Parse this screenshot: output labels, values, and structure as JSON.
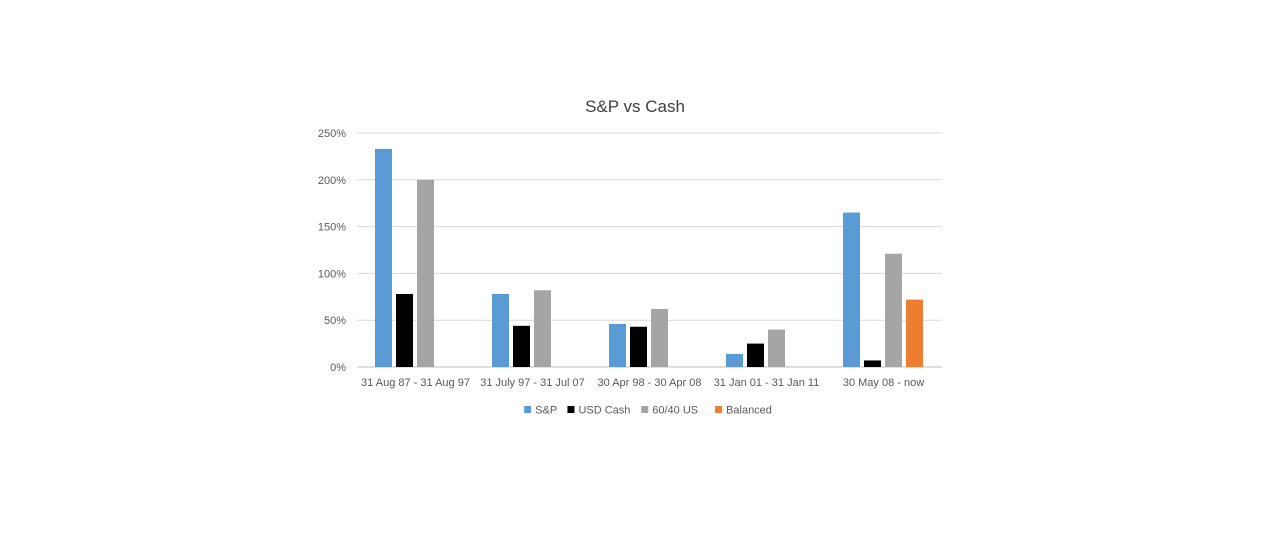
{
  "chart_data": {
    "type": "bar",
    "title": "S&P vs Cash",
    "xlabel": "",
    "ylabel": "",
    "categories": [
      "31 Aug 87 - 31 Aug 97",
      "31 July 97 - 31 Jul 07",
      "30 Apr 98 - 30 Apr 08",
      "31 Jan 01 - 31 Jan 11",
      "30 May 08 - now"
    ],
    "series": [
      {
        "name": "S&P",
        "color": "#5B9BD5",
        "values": [
          233,
          78,
          46,
          14,
          165
        ]
      },
      {
        "name": "USD Cash",
        "color": "#000000",
        "values": [
          78,
          44,
          43,
          25,
          7
        ]
      },
      {
        "name": "60/40 US",
        "color": "#A5A5A5",
        "values": [
          200,
          82,
          62,
          40,
          121
        ]
      },
      {
        "name": "Balanced",
        "color": "#ED7D31",
        "values": [
          null,
          null,
          null,
          null,
          72
        ]
      }
    ],
    "ylim": [
      0,
      250
    ],
    "yticks": [
      0,
      50,
      100,
      150,
      200,
      250
    ],
    "ytick_labels": [
      "0%",
      "50%",
      "100%",
      "150%",
      "200%",
      "250%"
    ],
    "grid": true,
    "legend_position": "bottom"
  }
}
